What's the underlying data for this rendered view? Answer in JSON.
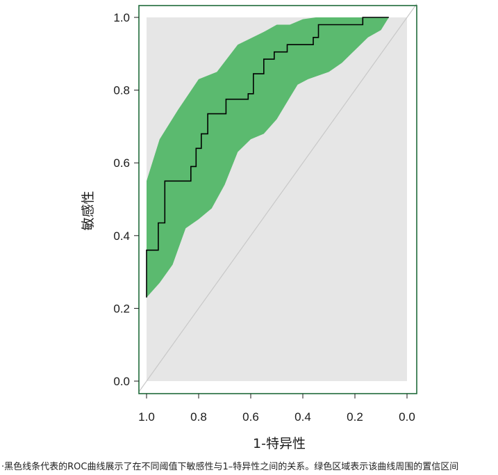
{
  "chart_data": {
    "type": "line",
    "xlabel": "1-特异性",
    "ylabel": "敏感性",
    "xlim": [
      1.0,
      0.0
    ],
    "ylim": [
      0.0,
      1.0
    ],
    "x_ticks": [
      "1.0",
      "0.8",
      "0.6",
      "0.4",
      "0.2",
      "0.0"
    ],
    "y_ticks": [
      "0.0",
      "0.2",
      "0.4",
      "0.6",
      "0.8",
      "1.0"
    ],
    "grid": false,
    "legend": "none",
    "colors": {
      "frame": "#1f6b3a",
      "ci_band": "#5bba6f",
      "background_band": "#e6e6e6",
      "roc_line": "#000000",
      "diagonal": "#c8c8c8"
    },
    "series": [
      {
        "role": "roc_curve",
        "x": [
          1.0,
          1.0,
          0.955,
          0.955,
          0.93,
          0.93,
          0.83,
          0.83,
          0.81,
          0.81,
          0.79,
          0.79,
          0.765,
          0.765,
          0.695,
          0.695,
          0.61,
          0.61,
          0.59,
          0.59,
          0.55,
          0.55,
          0.51,
          0.51,
          0.46,
          0.46,
          0.36,
          0.36,
          0.34,
          0.34,
          0.29,
          0.29,
          0.17,
          0.17,
          0.07
        ],
        "y": [
          0.23,
          0.36,
          0.36,
          0.435,
          0.435,
          0.55,
          0.55,
          0.59,
          0.59,
          0.64,
          0.64,
          0.68,
          0.68,
          0.735,
          0.735,
          0.775,
          0.775,
          0.79,
          0.79,
          0.845,
          0.845,
          0.885,
          0.885,
          0.905,
          0.905,
          0.925,
          0.925,
          0.945,
          0.945,
          0.98,
          0.98,
          0.98,
          0.98,
          1.0,
          1.0
        ]
      },
      {
        "role": "ci_upper",
        "x": [
          1.0,
          0.95,
          0.88,
          0.8,
          0.73,
          0.65,
          0.55,
          0.5,
          0.45,
          0.4,
          0.35,
          0.3,
          0.25,
          0.2,
          0.1,
          0.07
        ],
        "y": [
          0.55,
          0.665,
          0.745,
          0.83,
          0.85,
          0.925,
          0.96,
          0.98,
          0.98,
          0.995,
          1.0,
          1.0,
          1.0,
          1.0,
          1.0,
          1.0
        ]
      },
      {
        "role": "ci_lower",
        "x": [
          1.0,
          0.95,
          0.9,
          0.85,
          0.8,
          0.75,
          0.7,
          0.65,
          0.6,
          0.55,
          0.5,
          0.45,
          0.42,
          0.38,
          0.3,
          0.25,
          0.2,
          0.15,
          0.1,
          0.07
        ],
        "y": [
          0.23,
          0.27,
          0.32,
          0.42,
          0.445,
          0.475,
          0.54,
          0.63,
          0.665,
          0.68,
          0.72,
          0.78,
          0.815,
          0.83,
          0.85,
          0.875,
          0.91,
          0.945,
          0.965,
          1.0
        ]
      }
    ],
    "background_region": {
      "x": [
        1.0,
        0.0
      ],
      "y": [
        0.0,
        1.0
      ]
    },
    "reference_line": {
      "x": [
        1.0,
        0.0
      ],
      "y": [
        0.0,
        1.0
      ]
    }
  },
  "caption": "·黑色线条代表的ROC曲线展示了在不同阈值下敏感性与1–特异性之间的关系。绿色区域表示该曲线周围的置信区间"
}
